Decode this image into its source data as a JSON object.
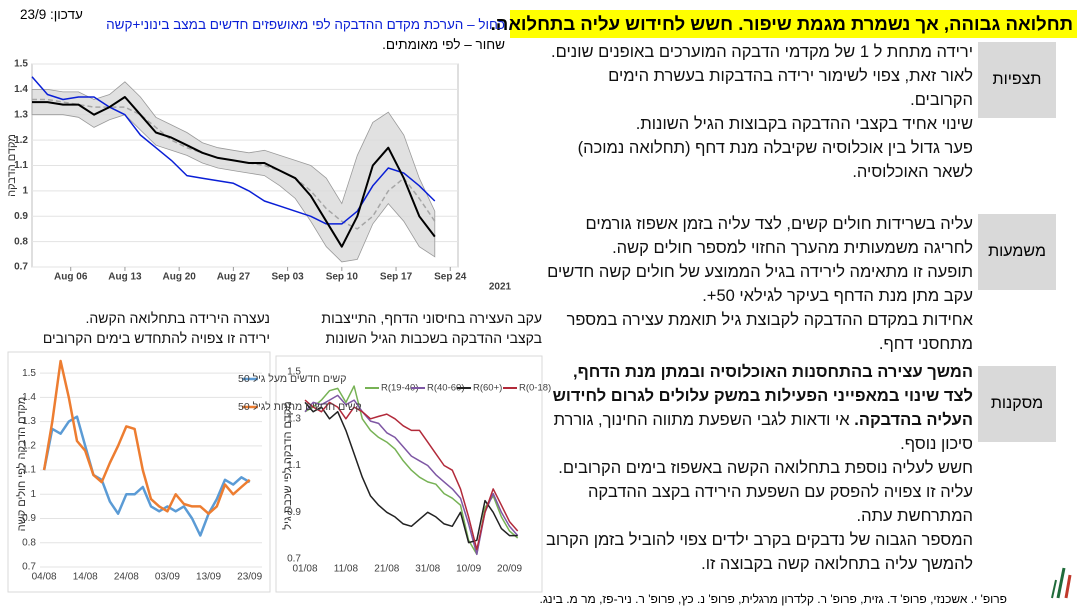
{
  "slide": {
    "title": "תחלואה גבוהה, אך נשמרת מגמת שיפור. חשש לחידוש עליה בתחלואה.",
    "sections": [
      {
        "label": "תצפיות",
        "paragraphs": [
          "ירידה מתחת ל 1 של מקדמי הדבקה המוערכים באופנים שונים.  לאור זאת, צפוי לשימור ירידה בהדבקות בעשרת הימים הקרובים.",
          "שינוי אחיד בקצבי ההדבקה בקבוצות הגיל השונות.",
          "פער גדול בין אוכלוסיה שקיבלה מנת דחף (תחלואה נמוכה) לשאר האוכלוסיה."
        ]
      },
      {
        "label": "משמעות",
        "paragraphs": [
          "עליה בשרידות חולים קשים, לצד עליה בזמן אשפוז גורמים לחריגה משמעותית מהערך החזוי למספר חולים קשה.",
          "תופעה זו מתאימה לירידה בגיל הממוצע של חולים קשה חדשים עקב מתן  מנת הדחף בעיקר לגילאי 50+.",
          "אחידות במקדם ההדבקה לקבוצת גיל תואמת עצירה במספר מתחסני דחף."
        ]
      },
      {
        "label": "מסקנות",
        "paragraphs": [
          {
            "bold": "המשך עצירה בהתחסנות האוכלוסיה ובמתן מנת הדחף, לצד שינוי במאפייני הפעילות במשק עלולים לגרום לחידוש העליה בהדבקה.",
            "text": " אי ודאות לגבי השפעת מתווה החינוך, גוררת סיכון נוסף."
          },
          {
            "text": "חשש לעליה נוספת בתחלואה הקשה באשפוז בימים הקרובים. עליה זו צפויה להפסק עם השפעת הירידה בקצב ההדבקה המתרחשת עתה."
          },
          {
            "text": "המספר הגבוה של נדבקים בקרב ילדים צפוי להוביל בזמן הקרוב להמשך עליה בתחלואה קשה בקבוצה זו."
          }
        ]
      }
    ],
    "footer": "פרופ' י. אשכנזי, פרופ' ד. גזית, פרופ' ר. קלדרון מרגלית, פרופ' נ. כץ, פרופ' ר. ניר-פז, מר מ. בינג."
  },
  "chart_data": [
    {
      "type": "line",
      "annotations": [
        "עדכון: 23/9",
        "כחול – הערכת מקדם ההדבקה לפי מאושפזים חדשים במצב בינוני+קשה",
        "שחור – לפי מאומתים."
      ],
      "ylabel": "מקדם הדבקה",
      "xlabel": "2021",
      "x": [
        "2021-08-01",
        "2021-08-03",
        "2021-08-05",
        "2021-08-07",
        "2021-08-09",
        "2021-08-11",
        "2021-08-13",
        "2021-08-15",
        "2021-08-17",
        "2021-08-19",
        "2021-08-21",
        "2021-08-23",
        "2021-08-25",
        "2021-08-27",
        "2021-08-29",
        "2021-08-31",
        "2021-09-02",
        "2021-09-04",
        "2021-09-06",
        "2021-09-08",
        "2021-09-10",
        "2021-09-12",
        "2021-09-14",
        "2021-09-16",
        "2021-09-18",
        "2021-09-20",
        "2021-09-22"
      ],
      "band": {
        "color": "#d9d9d9",
        "low": [
          1.3,
          1.3,
          1.3,
          1.29,
          1.25,
          1.28,
          1.3,
          1.24,
          1.18,
          1.16,
          1.14,
          1.11,
          1.09,
          1.08,
          1.07,
          1.06,
          1.02,
          0.97,
          0.88,
          0.78,
          0.72,
          0.73,
          0.87,
          0.95,
          0.88,
          0.78,
          0.74
        ],
        "high": [
          1.4,
          1.4,
          1.39,
          1.39,
          1.36,
          1.38,
          1.43,
          1.37,
          1.29,
          1.26,
          1.23,
          1.19,
          1.17,
          1.16,
          1.15,
          1.16,
          1.14,
          1.12,
          1.1,
          1.05,
          0.95,
          1.14,
          1.27,
          1.31,
          1.22,
          1.05,
          0.92
        ]
      },
      "series": [
        {
          "color": "#a6a6a6",
          "dash": true,
          "values": [
            1.36,
            1.36,
            1.35,
            1.34,
            1.33,
            1.33,
            1.33,
            1.3,
            1.25,
            1.2,
            1.17,
            1.15,
            1.13,
            1.12,
            1.11,
            1.1,
            1.08,
            1.05,
            1.0,
            0.93,
            0.88,
            0.85,
            0.9,
            1.0,
            1.05,
            0.97,
            0.88
          ]
        },
        {
          "color": "#0a1fd6",
          "values": [
            1.45,
            1.38,
            1.36,
            1.37,
            1.37,
            1.33,
            1.3,
            1.22,
            1.17,
            1.12,
            1.06,
            1.05,
            1.04,
            1.03,
            1.0,
            0.96,
            0.94,
            0.92,
            0.9,
            0.87,
            0.87,
            0.92,
            1.02,
            1.09,
            1.07,
            1.02,
            0.96
          ]
        },
        {
          "color": "#000000",
          "values": [
            1.35,
            1.35,
            1.34,
            1.34,
            1.3,
            1.33,
            1.37,
            1.3,
            1.23,
            1.21,
            1.18,
            1.15,
            1.13,
            1.12,
            1.11,
            1.11,
            1.08,
            1.05,
            0.98,
            0.88,
            0.78,
            0.9,
            1.1,
            1.17,
            1.05,
            0.9,
            0.82
          ]
        }
      ],
      "xlim": [
        "2021-08-01",
        "2021-09-25"
      ],
      "xticks": [
        {
          "value": "2021-08-06",
          "label": "Aug 06"
        },
        {
          "value": "2021-08-13",
          "label": "Aug 13"
        },
        {
          "value": "2021-08-20",
          "label": "Aug 20"
        },
        {
          "value": "2021-08-27",
          "label": "Aug 27"
        },
        {
          "value": "2021-09-03",
          "label": "Sep 03"
        },
        {
          "value": "2021-09-10",
          "label": "Sep 10"
        },
        {
          "value": "2021-09-17",
          "label": "Sep 17"
        },
        {
          "value": "2021-09-24",
          "label": "Sep 24"
        }
      ],
      "ylim": [
        0.7,
        1.5
      ],
      "yticks": [
        0.7,
        0.8,
        0.9,
        1,
        1.1,
        1.2,
        1.3,
        1.4,
        1.5
      ],
      "grid": true
    },
    {
      "type": "line",
      "caption": [
        "עקב העצירה בחיסוני הדחף, התייצבות",
        "בקצבי ההדבקה בשכבות הגיל השונות"
      ],
      "ylabel": "מקדם הדבקה לפי שכבת גיל",
      "x": [
        "01/08",
        "03/08",
        "05/08",
        "07/08",
        "09/08",
        "11/08",
        "13/08",
        "15/08",
        "17/08",
        "19/08",
        "21/08",
        "23/08",
        "25/08",
        "27/08",
        "29/08",
        "31/08",
        "02/09",
        "04/09",
        "06/09",
        "08/09",
        "10/09",
        "12/09",
        "14/09",
        "16/09",
        "18/09",
        "20/09",
        "22/09"
      ],
      "series": [
        {
          "name": "R(19-40)",
          "color": "#77b255",
          "values": [
            1.33,
            1.35,
            1.38,
            1.42,
            1.43,
            1.37,
            1.44,
            1.3,
            1.25,
            1.22,
            1.2,
            1.17,
            1.12,
            1.08,
            1.05,
            1.03,
            1.02,
            0.98,
            0.96,
            0.93,
            0.78,
            0.72,
            0.92,
            0.97,
            0.88,
            0.82,
            0.79
          ]
        },
        {
          "name": "R(40-60)",
          "color": "#7e57a4",
          "values": [
            1.33,
            1.37,
            1.36,
            1.38,
            1.4,
            1.36,
            1.38,
            1.33,
            1.29,
            1.28,
            1.24,
            1.22,
            1.18,
            1.14,
            1.12,
            1.1,
            1.06,
            1.03,
            1.0,
            0.96,
            0.85,
            0.72,
            0.9,
            0.98,
            0.9,
            0.84,
            0.8
          ]
        },
        {
          "name": "R(60+)",
          "color": "#222222",
          "values": [
            1.37,
            1.33,
            1.35,
            1.3,
            1.33,
            1.25,
            1.15,
            1.05,
            0.97,
            0.93,
            0.9,
            0.88,
            0.85,
            0.84,
            0.87,
            0.9,
            0.88,
            0.85,
            0.84,
            0.9,
            0.77,
            0.78,
            0.95,
            0.9,
            0.83,
            0.8,
            0.8
          ]
        },
        {
          "name": "R(0-18)",
          "color": "#b22a3a",
          "values": [
            1.38,
            1.35,
            1.33,
            1.37,
            1.35,
            1.3,
            1.35,
            1.33,
            1.3,
            1.31,
            1.32,
            1.3,
            1.27,
            1.25,
            1.25,
            1.2,
            1.15,
            1.1,
            1.08,
            1.0,
            0.88,
            0.74,
            0.9,
            1.0,
            0.93,
            0.86,
            0.82
          ]
        }
      ],
      "xlim": [
        "01/08",
        "25/09"
      ],
      "xticks": [
        "01/08",
        "11/08",
        "21/08",
        "31/08",
        "10/09",
        "20/09"
      ],
      "ylim": [
        0.7,
        1.5
      ],
      "yticks": [
        0.7,
        0.9,
        1.1,
        1.3,
        1.5
      ],
      "grid": false,
      "legend": "top"
    },
    {
      "type": "line",
      "caption": [
        "נעצרה  הירידה בתחלואה הקשה.",
        "ירידה זו צפויה להתחדש בימים הקרובים"
      ],
      "ylabel": "מקדם הדבקה לפי חולים קשה",
      "x": [
        "04/08",
        "06/08",
        "08/08",
        "10/08",
        "12/08",
        "14/08",
        "16/08",
        "18/08",
        "20/08",
        "22/08",
        "24/08",
        "26/08",
        "28/08",
        "30/08",
        "01/09",
        "03/09",
        "05/09",
        "07/09",
        "09/09",
        "11/09",
        "13/09",
        "15/09",
        "17/09",
        "19/09",
        "21/09",
        "23/09"
      ],
      "series": [
        {
          "name": "קשים חדשים מעל גיל 50",
          "color": "#5b9bd5",
          "values": [
            1.1,
            1.27,
            1.25,
            1.3,
            1.32,
            1.2,
            1.08,
            1.06,
            0.97,
            0.92,
            1.0,
            1.0,
            1.03,
            0.95,
            0.93,
            0.95,
            0.93,
            0.95,
            0.9,
            0.83,
            0.92,
            0.98,
            1.06,
            1.04,
            1.07,
            1.05
          ]
        },
        {
          "name": "קשים חדשים מתחת לגיל 50",
          "color": "#ed7d31",
          "values": [
            1.1,
            1.3,
            1.55,
            1.4,
            1.22,
            1.18,
            1.08,
            1.05,
            1.13,
            1.2,
            1.28,
            1.27,
            1.1,
            0.98,
            0.95,
            0.93,
            1.0,
            0.96,
            0.95,
            0.95,
            0.92,
            0.95,
            1.04,
            1.0,
            1.03,
            1.06
          ]
        }
      ],
      "xlim": [
        "03/08",
        "26/09"
      ],
      "xticks": [
        "04/08",
        "14/08",
        "24/08",
        "03/09",
        "13/09",
        "23/09"
      ],
      "ylim": [
        0.7,
        1.55
      ],
      "yticks": [
        0.7,
        0.8,
        0.9,
        1,
        1.1,
        1.2,
        1.3,
        1.4,
        1.5
      ],
      "grid": true,
      "legend": "upper right"
    }
  ]
}
